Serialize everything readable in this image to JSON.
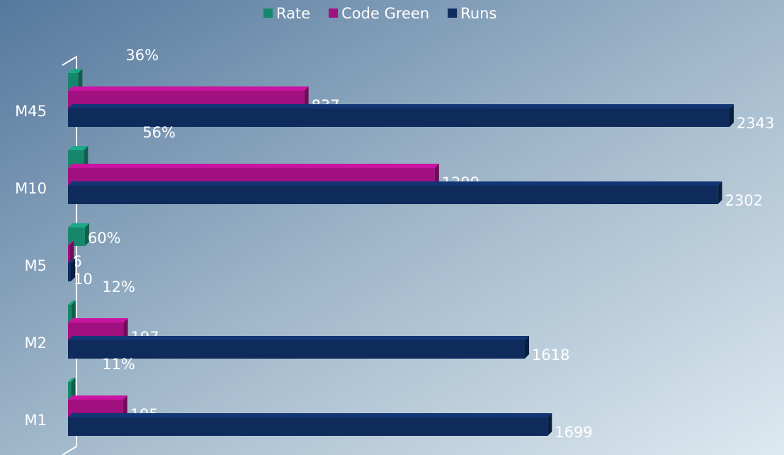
{
  "chart_data": {
    "type": "bar",
    "orientation": "horizontal",
    "categories": [
      "M45",
      "M10",
      "M5",
      "M2",
      "M1"
    ],
    "series": [
      {
        "name": "Rate",
        "color": "#17876c",
        "values": [
          36,
          56,
          60,
          12,
          11
        ],
        "value_labels": [
          "36%",
          "56%",
          "60%",
          "12%",
          "11%"
        ]
      },
      {
        "name": "Code Green",
        "color": "#a0107f",
        "values": [
          837,
          1299,
          6,
          197,
          195
        ]
      },
      {
        "name": "Runs",
        "color": "#0e2b5c",
        "values": [
          2343,
          2302,
          10,
          1618,
          1699
        ]
      }
    ],
    "legend": "top"
  }
}
